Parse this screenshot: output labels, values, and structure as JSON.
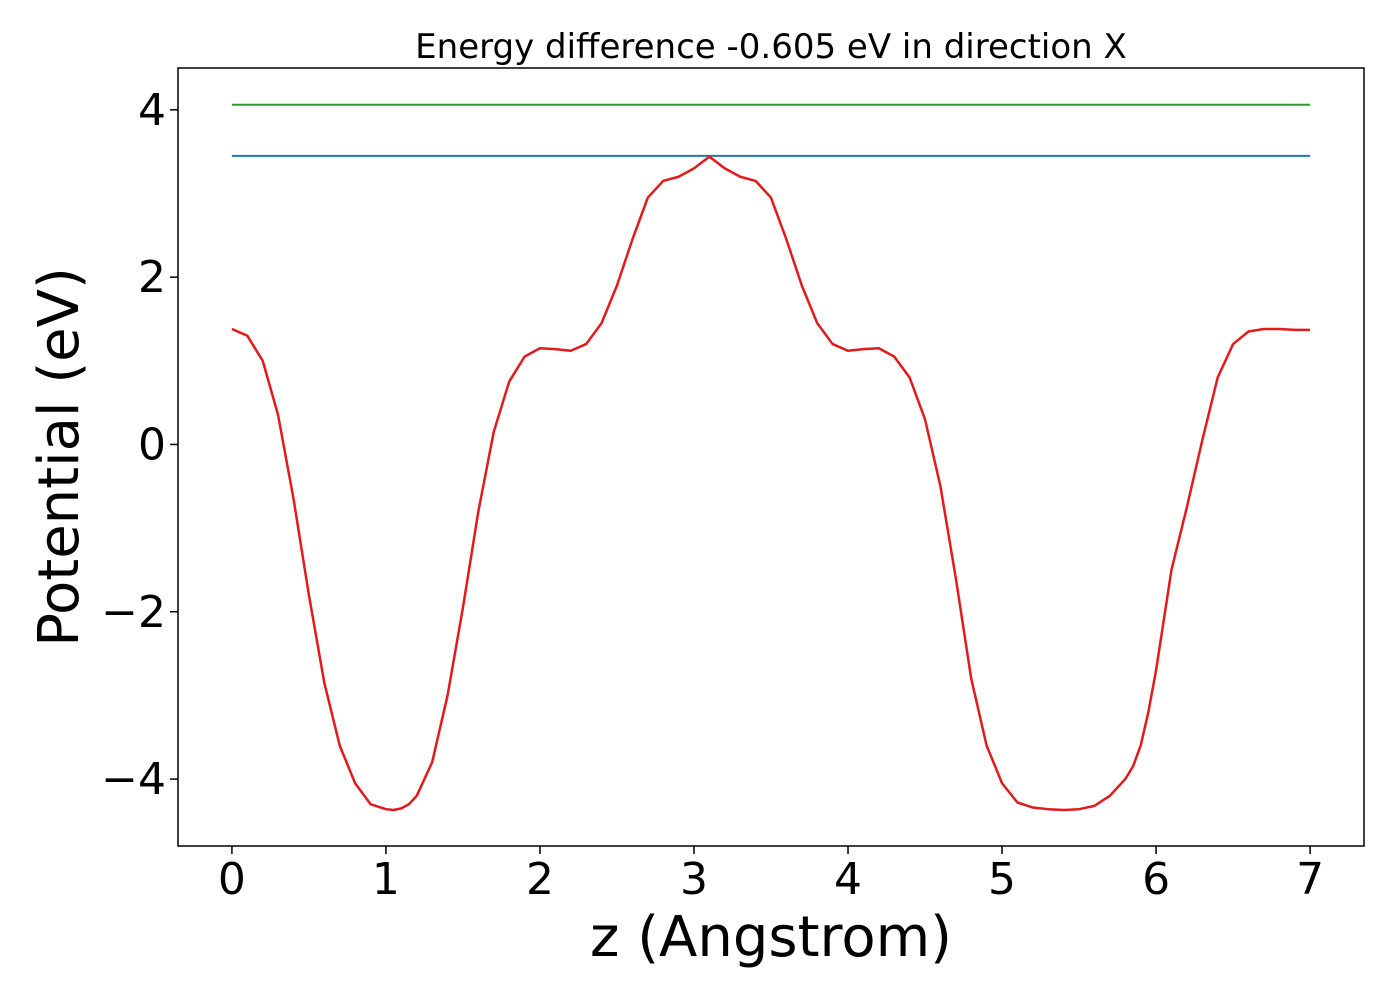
{
  "chart_data": {
    "type": "line",
    "title": "Energy difference -0.605 eV in direction X",
    "xlabel": "z (Angstrom)",
    "ylabel": "Potential (eV)",
    "xlim": [
      -0.35,
      7.35
    ],
    "ylim": [
      -4.8,
      4.5
    ],
    "xticks": [
      0,
      1,
      2,
      3,
      4,
      5,
      6,
      7
    ],
    "xtick_labels": [
      "0",
      "1",
      "2",
      "3",
      "4",
      "5",
      "6",
      "7"
    ],
    "yticks": [
      -4,
      -2,
      0,
      2,
      4
    ],
    "ytick_labels": [
      "−4",
      "−2",
      "0",
      "2",
      "4"
    ],
    "grid": false,
    "legend": null,
    "series": [
      {
        "color": "#2ca02c",
        "x": [
          0,
          7
        ],
        "y": [
          4.06,
          4.06
        ]
      },
      {
        "color": "#1f77b4",
        "x": [
          0,
          7
        ],
        "y": [
          3.45,
          3.45
        ]
      },
      {
        "color": "#e31a1c",
        "x": [
          0.0,
          0.1,
          0.2,
          0.3,
          0.4,
          0.5,
          0.6,
          0.7,
          0.8,
          0.9,
          1.0,
          1.05,
          1.1,
          1.15,
          1.2,
          1.3,
          1.4,
          1.5,
          1.6,
          1.7,
          1.8,
          1.9,
          2.0,
          2.1,
          2.2,
          2.3,
          2.4,
          2.5,
          2.6,
          2.7,
          2.8,
          2.9,
          3.0,
          3.1,
          3.2,
          3.3,
          3.4,
          3.5,
          3.6,
          3.7,
          3.8,
          3.9,
          4.0,
          4.1,
          4.2,
          4.3,
          4.4,
          4.5,
          4.6,
          4.7,
          4.8,
          4.9,
          5.0,
          5.1,
          5.2,
          5.3,
          5.4,
          5.5,
          5.6,
          5.7,
          5.8,
          5.85,
          5.9,
          5.95,
          6.0,
          6.05,
          6.1,
          6.2,
          6.3,
          6.4,
          6.5,
          6.6,
          6.7,
          6.8,
          6.9,
          7.0
        ],
        "y": [
          1.38,
          1.3,
          1.0,
          0.35,
          -0.65,
          -1.8,
          -2.85,
          -3.6,
          -4.05,
          -4.3,
          -4.36,
          -4.37,
          -4.35,
          -4.3,
          -4.2,
          -3.8,
          -3.0,
          -1.95,
          -0.8,
          0.15,
          0.75,
          1.05,
          1.15,
          1.14,
          1.12,
          1.2,
          1.45,
          1.9,
          2.45,
          2.95,
          3.15,
          3.2,
          3.3,
          3.44,
          3.3,
          3.2,
          3.15,
          2.95,
          2.45,
          1.9,
          1.45,
          1.2,
          1.12,
          1.14,
          1.15,
          1.05,
          0.8,
          0.3,
          -0.5,
          -1.6,
          -2.8,
          -3.6,
          -4.05,
          -4.28,
          -4.34,
          -4.36,
          -4.37,
          -4.36,
          -4.32,
          -4.2,
          -4.0,
          -3.85,
          -3.6,
          -3.2,
          -2.7,
          -2.1,
          -1.5,
          -0.75,
          0.05,
          0.8,
          1.2,
          1.35,
          1.38,
          1.38,
          1.37,
          1.37
        ]
      }
    ]
  }
}
